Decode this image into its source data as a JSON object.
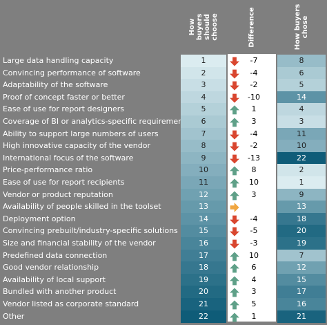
{
  "chart_data": {
    "type": "table",
    "columns": [
      "How buyers should choose",
      "Difference",
      "How buyers chose"
    ],
    "colors": {
      "background": "#7f7f7f",
      "up_arrow": "#5fa088",
      "down_arrow": "#d9462f",
      "neutral_arrow": "#f0a640",
      "scale_light": "#dbecf0",
      "scale_dark": "#0f5c78"
    },
    "rows": [
      {
        "label": "Large data handling capacity",
        "should": 1,
        "diff": "-7",
        "dir": "down",
        "chose": 8
      },
      {
        "label": "Convincing performance of software",
        "should": 2,
        "diff": "-4",
        "dir": "down",
        "chose": 6
      },
      {
        "label": "Adaptability of the software",
        "should": 3,
        "diff": "-2",
        "dir": "down",
        "chose": 5
      },
      {
        "label": "Proof of concept faster or better",
        "should": 4,
        "diff": "-10",
        "dir": "down",
        "chose": 14
      },
      {
        "label": "Ease of use for report designers",
        "should": 5,
        "diff": "1",
        "dir": "up",
        "chose": 4
      },
      {
        "label": "Coverage of BI or analytics-specific requirements",
        "should": 6,
        "diff": "3",
        "dir": "up",
        "chose": 3
      },
      {
        "label": "Ability to support large numbers of users",
        "should": 7,
        "diff": "-4",
        "dir": "down",
        "chose": 11
      },
      {
        "label": "High innovative capacity of the vendor",
        "should": 8,
        "diff": "-2",
        "dir": "down",
        "chose": 10
      },
      {
        "label": "International focus of the software",
        "should": 9,
        "diff": "-13",
        "dir": "down",
        "chose": 22
      },
      {
        "label": "Price-performance ratio",
        "should": 10,
        "diff": "8",
        "dir": "up",
        "chose": 2
      },
      {
        "label": "Ease of use for report recipients",
        "should": 11,
        "diff": "10",
        "dir": "up",
        "chose": 1
      },
      {
        "label": "Vendor or product reputation",
        "should": 12,
        "diff": "3",
        "dir": "up",
        "chose": 9
      },
      {
        "label": "Availability of people skilled in the toolset",
        "should": 13,
        "diff": "",
        "dir": "right",
        "chose": 13
      },
      {
        "label": "Deployment option",
        "should": 14,
        "diff": "-4",
        "dir": "down",
        "chose": 18
      },
      {
        "label": "Convincing prebuilt/industry-specific solutions",
        "should": 15,
        "diff": "-5",
        "dir": "down",
        "chose": 20
      },
      {
        "label": "Size and financial stability of the vendor",
        "should": 16,
        "diff": "-3",
        "dir": "down",
        "chose": 19
      },
      {
        "label": "Predefined data connection",
        "should": 17,
        "diff": "10",
        "dir": "up",
        "chose": 7
      },
      {
        "label": "Good vendor relationship",
        "should": 18,
        "diff": "6",
        "dir": "up",
        "chose": 12
      },
      {
        "label": "Availability of local support",
        "should": 19,
        "diff": "4",
        "dir": "up",
        "chose": 15
      },
      {
        "label": "Bundled with another product",
        "should": 20,
        "diff": "3",
        "dir": "up",
        "chose": 17
      },
      {
        "label": "Vendor listed as corporate standard",
        "should": 21,
        "diff": "5",
        "dir": "up",
        "chose": 16
      },
      {
        "label": "Other",
        "should": 22,
        "diff": "1",
        "dir": "up",
        "chose": 21
      }
    ]
  }
}
